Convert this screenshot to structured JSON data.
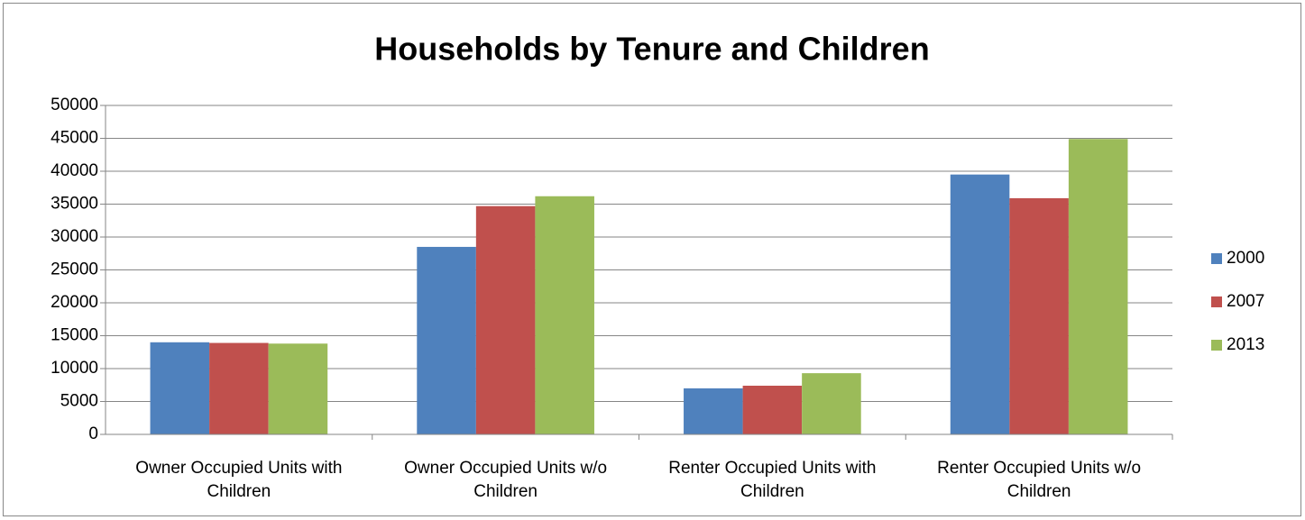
{
  "chart_data": {
    "type": "bar",
    "title": "Households by Tenure and Children",
    "categories": [
      "Owner Occupied Units with Children",
      "Owner Occupied Units w/o Children",
      "Renter Occupied Units with Children",
      "Renter Occupied Units w/o Children"
    ],
    "series": [
      {
        "name": "2000",
        "color": "#4f81bd",
        "values": [
          14000,
          28500,
          7000,
          39500
        ]
      },
      {
        "name": "2007",
        "color": "#c0504d",
        "values": [
          13900,
          34700,
          7400,
          35900
        ]
      },
      {
        "name": "2013",
        "color": "#9bbb59",
        "values": [
          13800,
          36200,
          9300,
          44900
        ]
      }
    ],
    "ylim": [
      0,
      50000
    ],
    "yticks": [
      0,
      5000,
      10000,
      15000,
      20000,
      25000,
      30000,
      35000,
      40000,
      45000,
      50000
    ],
    "grid": true,
    "legend": "right"
  }
}
